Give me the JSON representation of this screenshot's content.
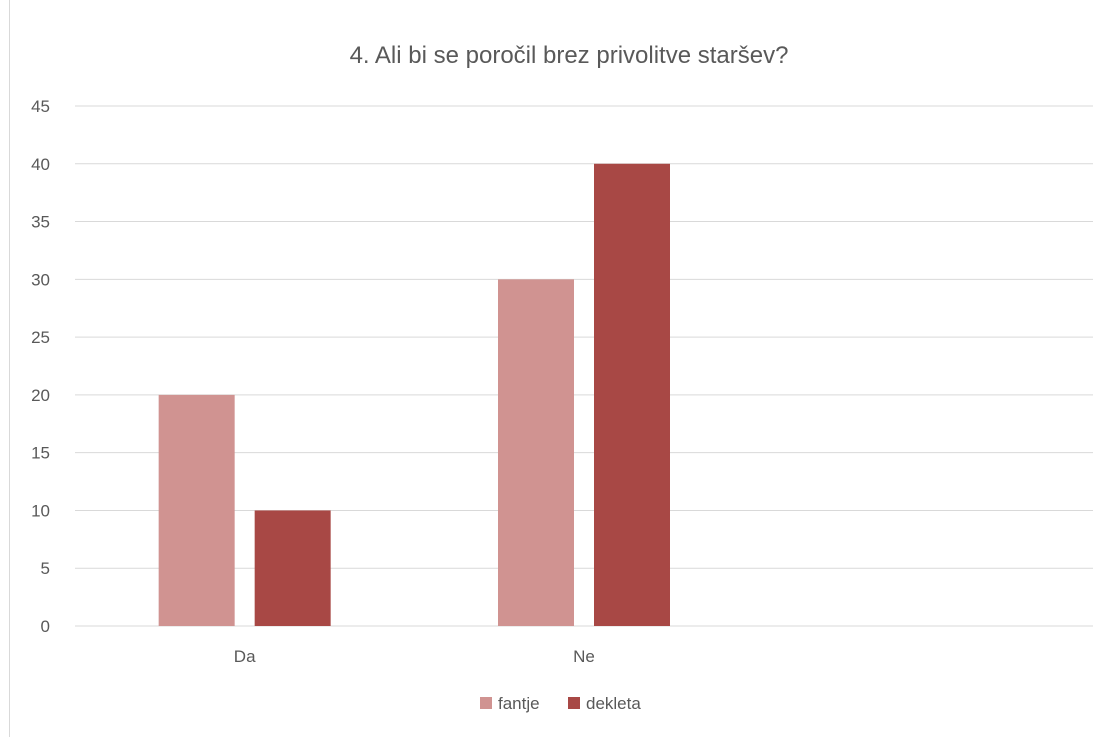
{
  "chart_data": {
    "type": "bar",
    "title": "4. Ali bi se poročil brez  privolitve staršev?",
    "categories": [
      "Da",
      "Ne",
      ""
    ],
    "series": [
      {
        "name": "fantje",
        "values": [
          20,
          30,
          null
        ]
      },
      {
        "name": "dekleta",
        "values": [
          10,
          40,
          null
        ]
      }
    ],
    "ylim": [
      0,
      45
    ],
    "yticks": [
      0,
      5,
      10,
      15,
      20,
      25,
      30,
      35,
      40,
      45
    ],
    "xlabel": "",
    "ylabel": "",
    "grid": true,
    "legend": "bottom"
  },
  "colors": {
    "fantje": "#d09391",
    "dekleta": "#a84845",
    "grid": "#d9d9d9",
    "text": "#595959"
  }
}
